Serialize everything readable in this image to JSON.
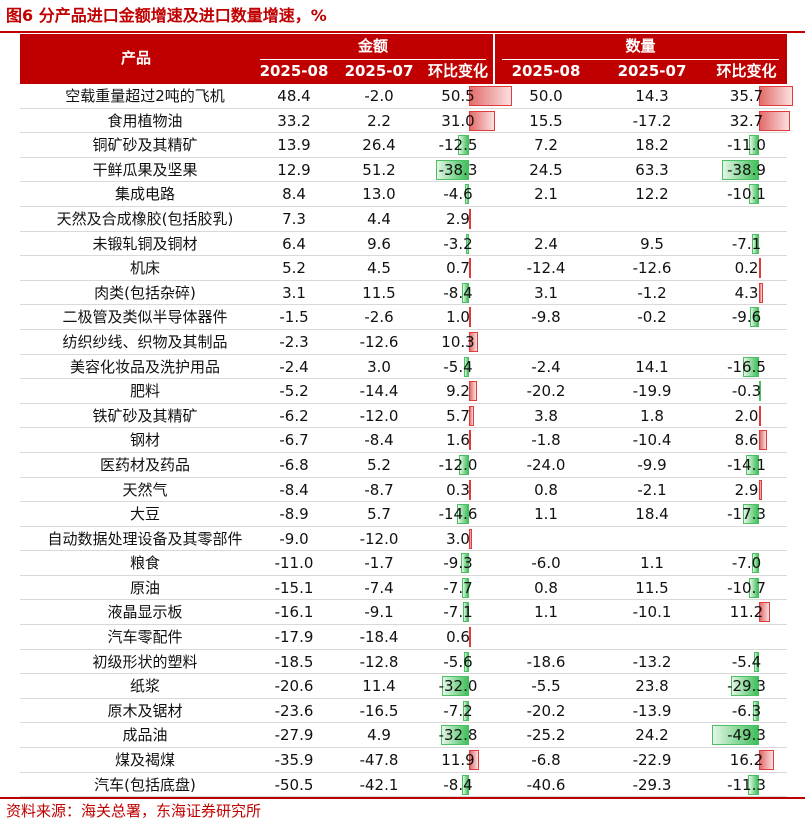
{
  "title": "图6  分产品进口金额增速及进口数量增速，%",
  "header": {
    "product": "产品",
    "amount_group": "金额",
    "quantity_group": "数量",
    "cols": [
      "2025-08",
      "2025-07",
      "环比变化",
      "2025-08",
      "2025-07",
      "环比变化"
    ]
  },
  "rows": [
    {
      "name": "空载重量超过2吨的飞机",
      "a08": "48.4",
      "a07": "-2.0",
      "achg": "50.5",
      "q08": "50.0",
      "q07": "14.3",
      "qchg": "35.7"
    },
    {
      "name": "食用植物油",
      "a08": "33.2",
      "a07": "2.2",
      "achg": "31.0",
      "q08": "15.5",
      "q07": "-17.2",
      "qchg": "32.7"
    },
    {
      "name": "铜矿砂及其精矿",
      "a08": "13.9",
      "a07": "26.4",
      "achg": "-12.5",
      "q08": "7.2",
      "q07": "18.2",
      "qchg": "-11.0"
    },
    {
      "name": "干鲜瓜果及坚果",
      "a08": "12.9",
      "a07": "51.2",
      "achg": "-38.3",
      "q08": "24.5",
      "q07": "63.3",
      "qchg": "-38.9"
    },
    {
      "name": "集成电路",
      "a08": "8.4",
      "a07": "13.0",
      "achg": "-4.6",
      "q08": "2.1",
      "q07": "12.2",
      "qchg": "-10.1"
    },
    {
      "name": "天然及合成橡胶(包括胶乳)",
      "a08": "7.3",
      "a07": "4.4",
      "achg": "2.9",
      "q08": "",
      "q07": "",
      "qchg": ""
    },
    {
      "name": "未锻轧铜及铜材",
      "a08": "6.4",
      "a07": "9.6",
      "achg": "-3.2",
      "q08": "2.4",
      "q07": "9.5",
      "qchg": "-7.1"
    },
    {
      "name": "机床",
      "a08": "5.2",
      "a07": "4.5",
      "achg": "0.7",
      "q08": "-12.4",
      "q07": "-12.6",
      "qchg": "0.2"
    },
    {
      "name": "肉类(包括杂碎)",
      "a08": "3.1",
      "a07": "11.5",
      "achg": "-8.4",
      "q08": "3.1",
      "q07": "-1.2",
      "qchg": "4.3"
    },
    {
      "name": "二极管及类似半导体器件",
      "a08": "-1.5",
      "a07": "-2.6",
      "achg": "1.0",
      "q08": "-9.8",
      "q07": "-0.2",
      "qchg": "-9.6"
    },
    {
      "name": "纺织纱线、织物及其制品",
      "a08": "-2.3",
      "a07": "-12.6",
      "achg": "10.3",
      "q08": "",
      "q07": "",
      "qchg": ""
    },
    {
      "name": "美容化妆品及洗护用品",
      "a08": "-2.4",
      "a07": "3.0",
      "achg": "-5.4",
      "q08": "-2.4",
      "q07": "14.1",
      "qchg": "-16.5"
    },
    {
      "name": "肥料",
      "a08": "-5.2",
      "a07": "-14.4",
      "achg": "9.2",
      "q08": "-20.2",
      "q07": "-19.9",
      "qchg": "-0.3"
    },
    {
      "name": "铁矿砂及其精矿",
      "a08": "-6.2",
      "a07": "-12.0",
      "achg": "5.7",
      "q08": "3.8",
      "q07": "1.8",
      "qchg": "2.0"
    },
    {
      "name": "钢材",
      "a08": "-6.7",
      "a07": "-8.4",
      "achg": "1.6",
      "q08": "-1.8",
      "q07": "-10.4",
      "qchg": "8.6"
    },
    {
      "name": "医药材及药品",
      "a08": "-6.8",
      "a07": "5.2",
      "achg": "-12.0",
      "q08": "-24.0",
      "q07": "-9.9",
      "qchg": "-14.1"
    },
    {
      "name": "天然气",
      "a08": "-8.4",
      "a07": "-8.7",
      "achg": "0.3",
      "q08": "0.8",
      "q07": "-2.1",
      "qchg": "2.9"
    },
    {
      "name": "大豆",
      "a08": "-8.9",
      "a07": "5.7",
      "achg": "-14.6",
      "q08": "1.1",
      "q07": "18.4",
      "qchg": "-17.3"
    },
    {
      "name": "自动数据处理设备及其零部件",
      "a08": "-9.0",
      "a07": "-12.0",
      "achg": "3.0",
      "q08": "",
      "q07": "",
      "qchg": ""
    },
    {
      "name": "粮食",
      "a08": "-11.0",
      "a07": "-1.7",
      "achg": "-9.3",
      "q08": "-6.0",
      "q07": "1.1",
      "qchg": "-7.0"
    },
    {
      "name": "原油",
      "a08": "-15.1",
      "a07": "-7.4",
      "achg": "-7.7",
      "q08": "0.8",
      "q07": "11.5",
      "qchg": "-10.7"
    },
    {
      "name": "液晶显示板",
      "a08": "-16.1",
      "a07": "-9.1",
      "achg": "-7.1",
      "q08": "1.1",
      "q07": "-10.1",
      "qchg": "11.2"
    },
    {
      "name": "汽车零配件",
      "a08": "-17.9",
      "a07": "-18.4",
      "achg": "0.6",
      "q08": "",
      "q07": "",
      "qchg": ""
    },
    {
      "name": "初级形状的塑料",
      "a08": "-18.5",
      "a07": "-12.8",
      "achg": "-5.6",
      "q08": "-18.6",
      "q07": "-13.2",
      "qchg": "-5.4"
    },
    {
      "name": "纸浆",
      "a08": "-20.6",
      "a07": "11.4",
      "achg": "-32.0",
      "q08": "-5.5",
      "q07": "23.8",
      "qchg": "-29.3"
    },
    {
      "name": "原木及锯材",
      "a08": "-23.6",
      "a07": "-16.5",
      "achg": "-7.2",
      "q08": "-20.2",
      "q07": "-13.9",
      "qchg": "-6.3"
    },
    {
      "name": "成品油",
      "a08": "-27.9",
      "a07": "4.9",
      "achg": "-32.8",
      "q08": "-25.2",
      "q07": "24.2",
      "qchg": "-49.3"
    },
    {
      "name": "煤及褐煤",
      "a08": "-35.9",
      "a07": "-47.8",
      "achg": "11.9",
      "q08": "-6.8",
      "q07": "-22.9",
      "qchg": "16.2"
    },
    {
      "name": "汽车(包括底盘)",
      "a08": "-50.5",
      "a07": "-42.1",
      "achg": "-8.4",
      "q08": "-40.6",
      "q07": "-29.3",
      "qchg": "-11.3"
    }
  ],
  "colors": {
    "accent": "#c00000",
    "positive_bar": "#e23b3b",
    "negative_bar": "#4bbf62"
  },
  "source": "资料来源：海关总署，东海证券研究所"
}
